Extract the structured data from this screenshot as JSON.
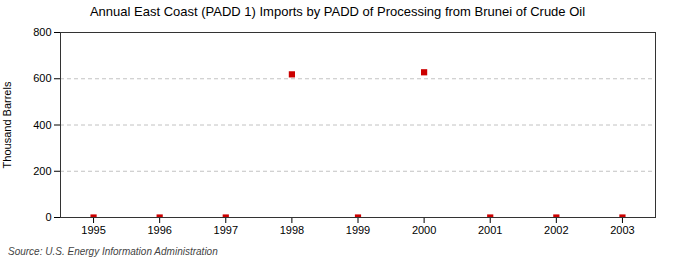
{
  "chart_data": {
    "type": "scatter",
    "title": "Annual East Coast (PADD 1) Imports by PADD of Processing from Brunei of Crude Oil",
    "ylabel": "Thousand Barrels",
    "source": "Source: U.S. Energy Information Administration",
    "x": [
      1995,
      1996,
      1997,
      1998,
      1999,
      2000,
      2001,
      2002,
      2003
    ],
    "values": [
      0,
      0,
      0,
      619,
      0,
      628,
      0,
      0,
      0
    ],
    "color": "#cc0000",
    "marker": "square",
    "xlim": [
      1994.5,
      2003.5
    ],
    "xticks": [
      1995,
      1996,
      1997,
      1998,
      1999,
      2000,
      2001,
      2002,
      2003
    ],
    "ylim": [
      0,
      800
    ],
    "yticks": [
      0,
      200,
      400,
      600,
      800
    ],
    "grid": true
  }
}
